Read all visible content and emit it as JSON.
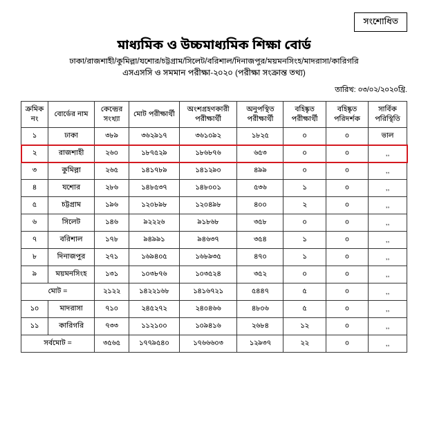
{
  "badge": "সংশোধিত",
  "title": "মাধ্যমিক ও উচ্চমাধ্যমিক শিক্ষা বোর্ড",
  "subtitle1": "ঢাকা/রাজশাহী/কুমিল্লা/যশোর/চট্টগ্রাম/সিলেট/বরিশাল/দিনাজপুর/ময়মনসিংহ/মাদরাসা/কারিগরি",
  "subtitle2": "এসএসসি ও সমমান পরীক্ষা-২০২০ (পরীক্ষা সংক্রান্ত তথ্য)",
  "date_label": "তারিখ: ০৩/০২/২০২০খ্রি.",
  "columns": {
    "c0": "ক্রমিক\nনং",
    "c1": "বোর্ডের\nনাম",
    "c2": "কেন্দ্রের\nসংখ্যা",
    "c3": "মোট পরীক্ষার্থী",
    "c4": "অংশগ্রহণকারী\nপরীক্ষার্থী",
    "c5": "অনুপস্থিত\nপরীক্ষার্থী",
    "c6": "বহিষ্কৃত\nপরীক্ষার্থী",
    "c7": "বহিষ্কৃত\nপরিদর্শক",
    "c8": "সার্বিক\nপরিস্থিতি"
  },
  "rows": [
    {
      "sl": "১",
      "board": "ঢাকা",
      "centers": "৩৮৯",
      "total": "৩৬২৯১৭",
      "present": "৩৬১০৯২",
      "absent": "১৮২৫",
      "exp_stu": "০",
      "exp_inv": "০",
      "status": "ভাল",
      "hl": false
    },
    {
      "sl": "২",
      "board": "রাজশাহী",
      "centers": "২৬০",
      "total": "১৮৭৫২৯",
      "present": "১৮৬৮৭৬",
      "absent": "৬৫৩",
      "exp_stu": "০",
      "exp_inv": "০",
      "status": ",,",
      "hl": true
    },
    {
      "sl": "৩",
      "board": "কুমিল্লা",
      "centers": "২৬৫",
      "total": "১৪১৭৮৯",
      "present": "১৪১২৯০",
      "absent": "৪৯৯",
      "exp_stu": "০",
      "exp_inv": "০",
      "status": ",,",
      "hl": false
    },
    {
      "sl": "৪",
      "board": "যশোর",
      "centers": "২৮৬",
      "total": "১৪৮৫৩৭",
      "present": "১৪৮০০১",
      "absent": "৫৩৬",
      "exp_stu": "১",
      "exp_inv": "০",
      "status": ",,",
      "hl": false
    },
    {
      "sl": "৫",
      "board": "চট্টগ্রাম",
      "centers": "১৯৬",
      "total": "১২০৮৯৮",
      "present": "১২০৪৯৮",
      "absent": "৪০০",
      "exp_stu": "২",
      "exp_inv": "০",
      "status": ",,",
      "hl": false
    },
    {
      "sl": "৬",
      "board": "সিলেট",
      "centers": "১৪৬",
      "total": "৯২২২৬",
      "present": "৯১৮৬৮",
      "absent": "৩৫৮",
      "exp_stu": "০",
      "exp_inv": "০",
      "status": ",,",
      "hl": false
    },
    {
      "sl": "৭",
      "board": "বরিশাল",
      "centers": "১৭৮",
      "total": "৯৪৯৯১",
      "present": "৯৪৬৩৭",
      "absent": "৩৫৪",
      "exp_stu": "১",
      "exp_inv": "০",
      "status": ",,",
      "hl": false
    },
    {
      "sl": "৮",
      "board": "দিনাজপুর",
      "centers": "২৭১",
      "total": "১৬৯৪০৫",
      "present": "১৬৮৯৩৫",
      "absent": "৪৭০",
      "exp_stu": "১",
      "exp_inv": "০",
      "status": ",,",
      "hl": false
    },
    {
      "sl": "৯",
      "board": "ময়মনসিংহ",
      "centers": "১৩১",
      "total": "১০৩৮৭৬",
      "present": "১০৩৫২৪",
      "absent": "৩৫২",
      "exp_stu": "০",
      "exp_inv": "০",
      "status": ",,",
      "hl": false
    }
  ],
  "subtotal": {
    "label": "মোট =",
    "centers": "২১২২",
    "total": "১৪২২১৬৮",
    "present": "১৪১৬৭২১",
    "absent": "৫৪৪৭",
    "exp_stu": "৫",
    "exp_inv": "০",
    "status": ",,"
  },
  "extra": [
    {
      "sl": "১০",
      "board": "মাদরাসা",
      "centers": "৭১০",
      "total": "২৪৫২৭২",
      "present": "২৪০৪৬৬",
      "absent": "৪৮০৬",
      "exp_stu": "৫",
      "exp_inv": "০",
      "status": ",,"
    },
    {
      "sl": "১১",
      "board": "কারিগরি",
      "centers": "৭৩৩",
      "total": "১১২১০০",
      "present": "১০৯৪১৬",
      "absent": "২৬৮৪",
      "exp_stu": "১২",
      "exp_inv": "০",
      "status": ",,"
    }
  ],
  "grandtotal": {
    "label": "সর্বমোট =",
    "centers": "৩৫৬৫",
    "total": "১৭৭৯৫৪০",
    "present": "১৭৬৬৬০৩",
    "absent": "১২৯৩৭",
    "exp_stu": "২২",
    "exp_inv": "০",
    "status": ",,"
  },
  "style": {
    "highlight_color": "#d4181f",
    "border_color": "#333333",
    "background": "#ffffff",
    "col_widths_pct": [
      7,
      12,
      9,
      13,
      15,
      12,
      11,
      11,
      10
    ]
  }
}
